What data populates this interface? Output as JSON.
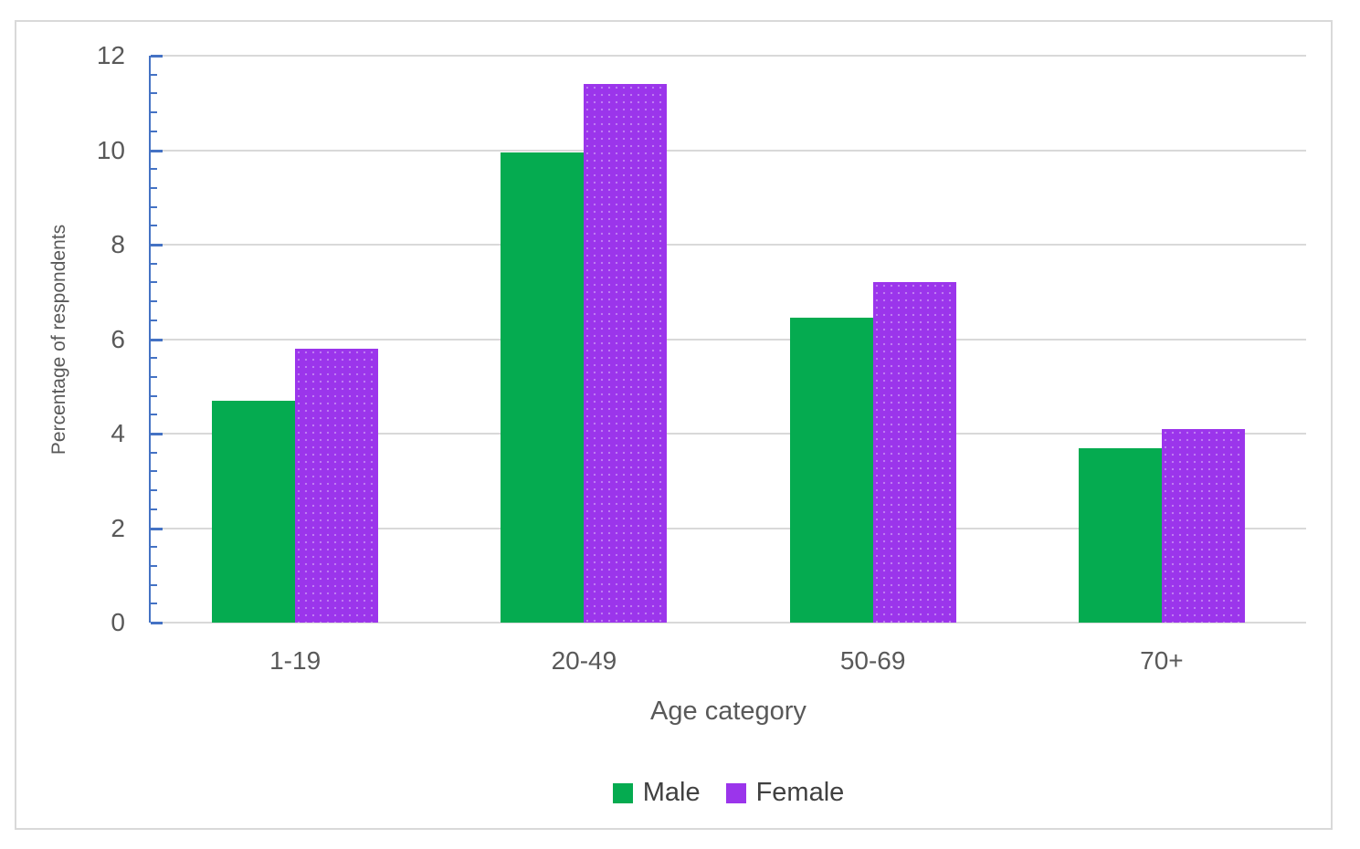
{
  "chart_data": {
    "type": "bar",
    "categories": [
      "1-19",
      "20-49",
      "50-69",
      "70+"
    ],
    "series": [
      {
        "name": "Male",
        "color": "#05ab50",
        "pattern": "solid",
        "values": [
          4.7,
          9.95,
          6.45,
          3.7
        ]
      },
      {
        "name": "Female",
        "color": "#9b35eb",
        "pattern": "dots",
        "values": [
          5.8,
          11.4,
          7.2,
          4.1
        ]
      }
    ],
    "title": "",
    "xlabel": "Age category",
    "ylabel": "Percentage of respondents",
    "ylim": [
      0,
      12
    ],
    "yticks": [
      0,
      2,
      4,
      6,
      8,
      10,
      12
    ],
    "minor_tick_step": 0.4,
    "grid": true,
    "legend_position": "bottom",
    "colors": {
      "axis_line": "#4472c4",
      "gridline": "#d9d9d9",
      "tick_text": "#595959",
      "axis_title_text": "#595959",
      "legend_text": "#404040",
      "frame_border": "#d9d9d9",
      "background": "#ffffff"
    }
  }
}
